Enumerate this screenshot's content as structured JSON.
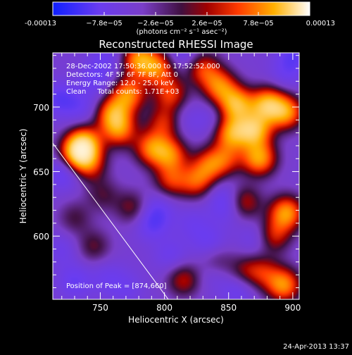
{
  "chart_data": {
    "type": "heatmap",
    "title": "Reconstructed RHESSI Image",
    "xlabel": "Heliocentric X (arcsec)",
    "ylabel": "Heliocentric Y (arcsec)",
    "xlim": [
      713,
      905
    ],
    "ylim": [
      551,
      742
    ],
    "x_ticks": [
      750,
      800,
      850,
      900
    ],
    "y_ticks": [
      600,
      650,
      700
    ],
    "colorbar": {
      "range": [
        -0.00013,
        0.00013
      ],
      "tick_labels": [
        "-0.00013",
        "−7.8e−05",
        "−2.6e−05",
        "2.6e−05",
        "7.8e−05",
        "0.00013"
      ],
      "tick_values": [
        -0.00013,
        -7.8e-05,
        -2.6e-05,
        2.6e-05,
        7.8e-05,
        0.00013
      ],
      "units": "(photons cm⁻² s⁻¹ asec⁻²)"
    },
    "annotations": {
      "time_range": "28-Dec-2002 17:50:36.000 to 17:52:52.000",
      "detectors": "Detectors: 4F 5F 6F 7F 8F, Att 0",
      "energy_range": "Energy Range: 12.0 - 25.0 keV",
      "clean_counts": "Clean     Total counts: 1.71E+03",
      "peak_position": "Position of Peak = [874,660]"
    },
    "limb_line": [
      [
        713,
        672
      ],
      [
        803,
        551
      ]
    ],
    "peak": [
      874,
      660
    ],
    "hot_blobs": [
      {
        "x": 732,
        "y": 664,
        "v": 1.0
      },
      {
        "x": 738,
        "y": 672,
        "v": 0.85
      },
      {
        "x": 780,
        "y": 737,
        "v": 0.85
      },
      {
        "x": 795,
        "y": 730,
        "v": 0.7
      },
      {
        "x": 772,
        "y": 710,
        "v": 0.8
      },
      {
        "x": 760,
        "y": 695,
        "v": 0.8
      },
      {
        "x": 765,
        "y": 682,
        "v": 0.7
      },
      {
        "x": 805,
        "y": 710,
        "v": 0.6
      },
      {
        "x": 800,
        "y": 688,
        "v": 0.55
      },
      {
        "x": 830,
        "y": 730,
        "v": 0.6
      },
      {
        "x": 843,
        "y": 716,
        "v": 0.75
      },
      {
        "x": 856,
        "y": 702,
        "v": 0.95
      },
      {
        "x": 880,
        "y": 702,
        "v": 0.95
      },
      {
        "x": 895,
        "y": 696,
        "v": 0.85
      },
      {
        "x": 870,
        "y": 682,
        "v": 1.0
      },
      {
        "x": 852,
        "y": 680,
        "v": 0.85
      },
      {
        "x": 874,
        "y": 660,
        "v": 0.9
      },
      {
        "x": 848,
        "y": 660,
        "v": 0.5
      },
      {
        "x": 790,
        "y": 668,
        "v": 0.75
      },
      {
        "x": 805,
        "y": 663,
        "v": 0.7
      },
      {
        "x": 805,
        "y": 643,
        "v": 0.55
      },
      {
        "x": 825,
        "y": 642,
        "v": 0.6
      },
      {
        "x": 835,
        "y": 655,
        "v": 0.6
      },
      {
        "x": 862,
        "y": 626,
        "v": 0.55
      },
      {
        "x": 895,
        "y": 618,
        "v": 0.9
      },
      {
        "x": 885,
        "y": 600,
        "v": 0.55
      },
      {
        "x": 893,
        "y": 562,
        "v": 0.85
      },
      {
        "x": 877,
        "y": 572,
        "v": 0.45
      },
      {
        "x": 862,
        "y": 572,
        "v": 0.4
      },
      {
        "x": 815,
        "y": 566,
        "v": 0.5
      },
      {
        "x": 840,
        "y": 580,
        "v": 0.35
      },
      {
        "x": 745,
        "y": 592,
        "v": 0.35
      },
      {
        "x": 730,
        "y": 614,
        "v": 0.3
      },
      {
        "x": 775,
        "y": 622,
        "v": 0.4
      },
      {
        "x": 742,
        "y": 655,
        "v": 0.5
      },
      {
        "x": 752,
        "y": 632,
        "v": 0.3
      }
    ],
    "cold_blobs": [
      {
        "x": 722,
        "y": 650,
        "v": -1.0
      },
      {
        "x": 718,
        "y": 706,
        "v": -0.9
      },
      {
        "x": 747,
        "y": 722,
        "v": -0.7
      },
      {
        "x": 735,
        "y": 700,
        "v": -0.6
      },
      {
        "x": 755,
        "y": 740,
        "v": -0.6
      },
      {
        "x": 815,
        "y": 741,
        "v": -0.7
      },
      {
        "x": 900,
        "y": 740,
        "v": -0.8
      },
      {
        "x": 895,
        "y": 725,
        "v": -0.5
      },
      {
        "x": 815,
        "y": 690,
        "v": -0.45
      },
      {
        "x": 838,
        "y": 690,
        "v": -0.5
      },
      {
        "x": 790,
        "y": 610,
        "v": -0.85
      },
      {
        "x": 795,
        "y": 622,
        "v": -0.6
      },
      {
        "x": 835,
        "y": 595,
        "v": -0.7
      },
      {
        "x": 850,
        "y": 622,
        "v": -0.7
      },
      {
        "x": 845,
        "y": 632,
        "v": -0.5
      },
      {
        "x": 872,
        "y": 598,
        "v": -0.6
      },
      {
        "x": 822,
        "y": 610,
        "v": -0.5
      },
      {
        "x": 838,
        "y": 572,
        "v": -0.55
      },
      {
        "x": 858,
        "y": 560,
        "v": -0.8
      },
      {
        "x": 805,
        "y": 585,
        "v": -0.6
      },
      {
        "x": 730,
        "y": 565,
        "v": -0.75
      },
      {
        "x": 755,
        "y": 568,
        "v": -0.5
      },
      {
        "x": 720,
        "y": 590,
        "v": -0.5
      },
      {
        "x": 770,
        "y": 560,
        "v": -0.5
      }
    ],
    "background_level": -0.45
  },
  "footer": {
    "timestamp": "24-Apr-2013 13:37"
  }
}
